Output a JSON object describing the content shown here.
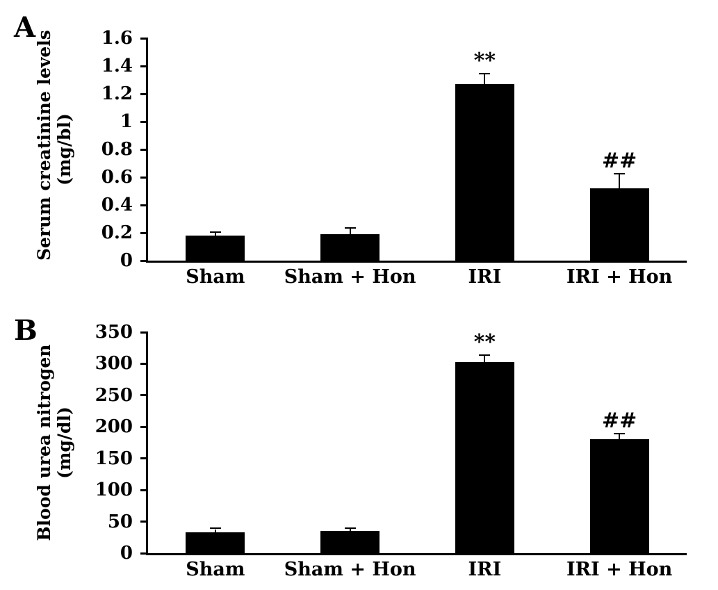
{
  "figure": {
    "panels": [
      {
        "label": "A",
        "ylabel_lines": [
          "Serum creatinine levels",
          "(mg/bl)"
        ]
      },
      {
        "label": "B",
        "ylabel_lines": [
          "Blood urea nitrogen",
          "(mg/dl)"
        ]
      }
    ]
  },
  "chart_data": [
    {
      "type": "bar",
      "panel": "A",
      "title": "",
      "xlabel": "",
      "ylabel": "Serum creatinine levels (mg/bl)",
      "categories": [
        "Sham",
        "Sham + Hon",
        "IRI",
        "IRI + Hon"
      ],
      "values": [
        0.18,
        0.19,
        1.27,
        0.52
      ],
      "errors": [
        0.02,
        0.04,
        0.07,
        0.1
      ],
      "annotations": [
        "",
        "",
        "**",
        "##"
      ],
      "ylim": [
        0,
        1.6
      ],
      "yticks": [
        0,
        0.2,
        0.4,
        0.6,
        0.8,
        1,
        1.2,
        1.4,
        1.6
      ],
      "grid": false,
      "legend": "none",
      "bar_color": "#000000"
    },
    {
      "type": "bar",
      "panel": "B",
      "title": "",
      "xlabel": "",
      "ylabel": "Blood urea nitrogen (mg/dl)",
      "categories": [
        "Sham",
        "Sham + Hon",
        "IRI",
        "IRI + Hon"
      ],
      "values": [
        33,
        35,
        303,
        181
      ],
      "errors": [
        5,
        3,
        10,
        7
      ],
      "annotations": [
        "",
        "",
        "**",
        "##"
      ],
      "ylim": [
        0,
        350
      ],
      "yticks": [
        0,
        50,
        100,
        150,
        200,
        250,
        300,
        350
      ],
      "grid": false,
      "legend": "none",
      "bar_color": "#000000"
    }
  ]
}
